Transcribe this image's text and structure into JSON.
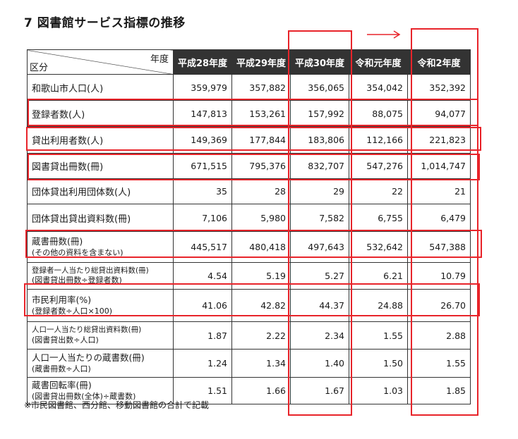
{
  "title": "7 図書館サービス指標の推移",
  "header": {
    "corner_year": "年度",
    "corner_category": "区分",
    "years": [
      "平成28年度",
      "平成29年度",
      "平成30年度",
      "令和元年度",
      "令和2年度"
    ]
  },
  "rows": [
    {
      "label": "和歌山市人口(人)",
      "values": [
        "359,979",
        "357,882",
        "356,065",
        "354,042",
        "352,392"
      ]
    },
    {
      "label": "登録者数(人)",
      "values": [
        "147,813",
        "153,261",
        "157,992",
        "88,075",
        "94,077"
      ]
    },
    {
      "label": "貸出利用者数(人)",
      "values": [
        "149,369",
        "177,844",
        "183,806",
        "112,166",
        "221,823"
      ]
    },
    {
      "label": "図書貸出冊数(冊)",
      "values": [
        "671,515",
        "795,376",
        "832,707",
        "547,276",
        "1,014,747"
      ]
    },
    {
      "label": "団体貸出利用団体数(人)",
      "values": [
        "35",
        "28",
        "29",
        "22",
        "21"
      ]
    },
    {
      "label": "団体貸出貸出資料数(冊)",
      "values": [
        "7,106",
        "5,980",
        "7,582",
        "6,755",
        "6,479"
      ]
    },
    {
      "label": "蔵書冊数(冊)",
      "sub": "(その他の資料を含まない)",
      "values": [
        "445,517",
        "480,418",
        "497,643",
        "532,642",
        "547,388"
      ]
    },
    {
      "label": "登録者一人当たり総貸出資料数(冊)",
      "sub": "(図書貸出冊数÷登録者数)",
      "values": [
        "4.54",
        "5.19",
        "5.27",
        "6.21",
        "10.79"
      ]
    },
    {
      "label": "市民利用率(%)",
      "sub": "(登録者数÷人口×100)",
      "values": [
        "41.06",
        "42.82",
        "44.37",
        "24.88",
        "26.70"
      ]
    },
    {
      "label": "人口一人当たり総貸出資料数(冊)",
      "sub": "(図書貸出数÷人口)",
      "values": [
        "1.87",
        "2.22",
        "2.34",
        "1.55",
        "2.88"
      ]
    },
    {
      "label": "人口一人当たりの蔵書数(冊)",
      "sub": "(蔵書冊数÷人口)",
      "values": [
        "1.24",
        "1.34",
        "1.40",
        "1.50",
        "1.55"
      ]
    },
    {
      "label": "蔵書回転率(冊)",
      "sub": "(図書貸出冊数(全体)÷蔵書数)",
      "values": [
        "1.51",
        "1.66",
        "1.67",
        "1.03",
        "1.85"
      ]
    }
  ],
  "note": "※市民図書館、西分館、移動図書館の合計で記載",
  "colors": {
    "highlight": "#e8242a",
    "header_bg": "#333333"
  }
}
